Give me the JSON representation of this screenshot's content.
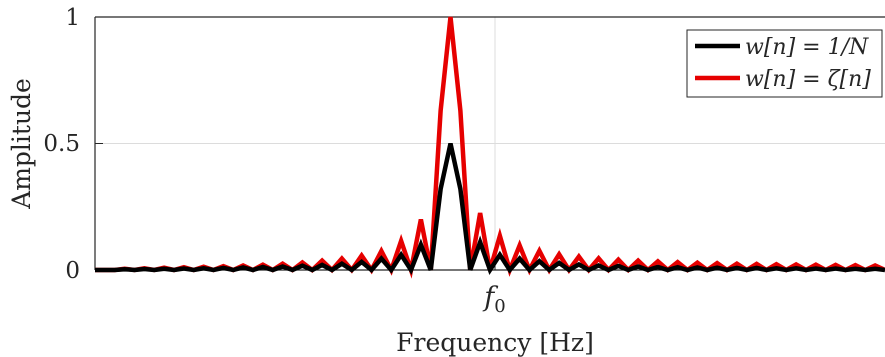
{
  "chart_data": {
    "type": "line",
    "xlabel": "Frequency [Hz]",
    "ylabel": "Amplitude",
    "x_tick_label": "f0",
    "yticks": [
      "0",
      "0.5",
      "1"
    ],
    "ylim": [
      0,
      1
    ],
    "xlim": [
      -40,
      40
    ],
    "grid": true,
    "legend_position": "top-right",
    "series": [
      {
        "name": "w[n] = 1/N",
        "color": "#000000",
        "x": [
          -40,
          -38,
          -37,
          -36,
          -35,
          -34,
          -33,
          -32,
          -31,
          -30,
          -29,
          -28,
          -27,
          -26,
          -25,
          -24,
          -23,
          -22,
          -21,
          -20,
          -19,
          -18,
          -17,
          -16,
          -15,
          -14,
          -13,
          -12,
          -11,
          -10,
          -9,
          -8,
          -7,
          -6,
          -5,
          -4,
          -3,
          -2,
          -1,
          0,
          1,
          2,
          3,
          4,
          5,
          6,
          7,
          8,
          9,
          10,
          11,
          12,
          13,
          14,
          15,
          16,
          17,
          18,
          19,
          20,
          21,
          22,
          23,
          24,
          25,
          26,
          27,
          28,
          29,
          30,
          31,
          32,
          33,
          34,
          35,
          36,
          37,
          38,
          39,
          40
        ],
        "values": [
          0,
          0,
          0.003,
          0,
          0.004,
          0,
          0.005,
          0,
          0.006,
          0,
          0.007,
          0,
          0.008,
          0,
          0.01,
          0,
          0.012,
          0,
          0.014,
          0,
          0.017,
          0,
          0.02,
          0,
          0.025,
          0,
          0.032,
          0,
          0.045,
          0,
          0.06,
          0,
          0.1,
          0,
          0.32,
          0.5,
          0.32,
          0,
          0.11,
          0,
          0.06,
          0,
          0.045,
          0,
          0.035,
          0,
          0.028,
          0,
          0.022,
          0,
          0.018,
          0,
          0.016,
          0,
          0.014,
          0,
          0.012,
          0,
          0.011,
          0,
          0.01,
          0,
          0.009,
          0,
          0.008,
          0,
          0.008,
          0,
          0.007,
          0,
          0.007,
          0,
          0.006,
          0,
          0.006,
          0,
          0.005,
          0,
          0.005,
          0
        ]
      },
      {
        "name": "w[n] = ζ[n]",
        "color": "#e60000",
        "x": [
          -40,
          -38,
          -37,
          -36,
          -35,
          -34,
          -33,
          -32,
          -31,
          -30,
          -29,
          -28,
          -27,
          -26,
          -25,
          -24,
          -23,
          -22,
          -21,
          -20,
          -19,
          -18,
          -17,
          -16,
          -15,
          -14,
          -13,
          -12,
          -11,
          -10,
          -9,
          -8,
          -7,
          -6,
          -5,
          -4,
          -3,
          -2,
          -1,
          0,
          1,
          2,
          3,
          4,
          5,
          6,
          7,
          8,
          9,
          10,
          11,
          12,
          13,
          14,
          15,
          16,
          17,
          18,
          19,
          20,
          21,
          22,
          23,
          24,
          25,
          26,
          27,
          28,
          29,
          30,
          31,
          32,
          33,
          34,
          35,
          36,
          37,
          38,
          39,
          40
        ],
        "values": [
          0,
          0,
          0.005,
          0,
          0.007,
          0,
          0.009,
          0,
          0.011,
          0,
          0.013,
          0,
          0.015,
          0,
          0.018,
          0,
          0.021,
          0,
          0.025,
          0,
          0.03,
          0,
          0.037,
          0,
          0.045,
          0,
          0.057,
          0,
          0.075,
          0,
          0.115,
          0,
          0.2,
          0,
          0.63,
          1.0,
          0.63,
          0,
          0.225,
          0,
          0.135,
          0,
          0.097,
          0,
          0.076,
          0,
          0.062,
          0,
          0.053,
          0,
          0.046,
          0,
          0.041,
          0,
          0.037,
          0,
          0.034,
          0,
          0.031,
          0,
          0.029,
          0,
          0.027,
          0,
          0.025,
          0,
          0.024,
          0,
          0.023,
          0,
          0.022,
          0,
          0.021,
          0,
          0.02,
          0,
          0.019,
          0,
          0.018,
          0
        ]
      }
    ]
  }
}
